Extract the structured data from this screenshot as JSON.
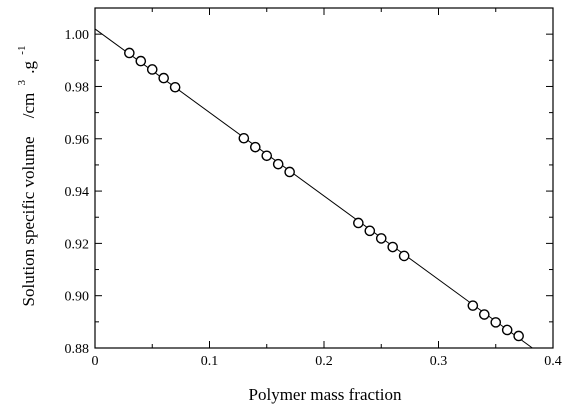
{
  "chart_data": {
    "type": "scatter",
    "title": "",
    "xlabel": "Polymer mass fraction",
    "ylabel": {
      "main": "Solution specific volume",
      "unit_prefix": "/cm",
      "unit_exp1": "3",
      "unit_mid": ".g",
      "unit_exp2": "-1"
    },
    "xlim": [
      0,
      0.4
    ],
    "ylim": [
      0.88,
      1.01
    ],
    "xticks": [
      0,
      0.1,
      0.2,
      0.3,
      0.4
    ],
    "xtick_labels": [
      "0",
      "0.1",
      "0.2",
      "0.3",
      "0.4"
    ],
    "yticks": [
      0.88,
      0.9,
      0.92,
      0.94,
      0.96,
      0.98,
      1.0
    ],
    "ytick_labels": [
      "0.88",
      "0.90",
      "0.92",
      "0.94",
      "0.96",
      "0.98",
      "1.00"
    ],
    "grid": false,
    "legend": "none",
    "series": [
      {
        "marker": "open-circle",
        "x": [
          0.03,
          0.04,
          0.05,
          0.06,
          0.07,
          0.13,
          0.14,
          0.15,
          0.16,
          0.17,
          0.23,
          0.24,
          0.25,
          0.26,
          0.27,
          0.33,
          0.34,
          0.35,
          0.36,
          0.37
        ],
        "y": [
          0.9928,
          0.9897,
          0.9865,
          0.9832,
          0.9797,
          0.9602,
          0.9568,
          0.9535,
          0.9503,
          0.9473,
          0.9278,
          0.9248,
          0.9219,
          0.9186,
          0.9152,
          0.8962,
          0.8928,
          0.8898,
          0.8869,
          0.8846
        ]
      }
    ],
    "fit_line": {
      "style": "solid",
      "x": [
        0,
        0.382
      ],
      "y": [
        1.002,
        0.88
      ]
    }
  }
}
